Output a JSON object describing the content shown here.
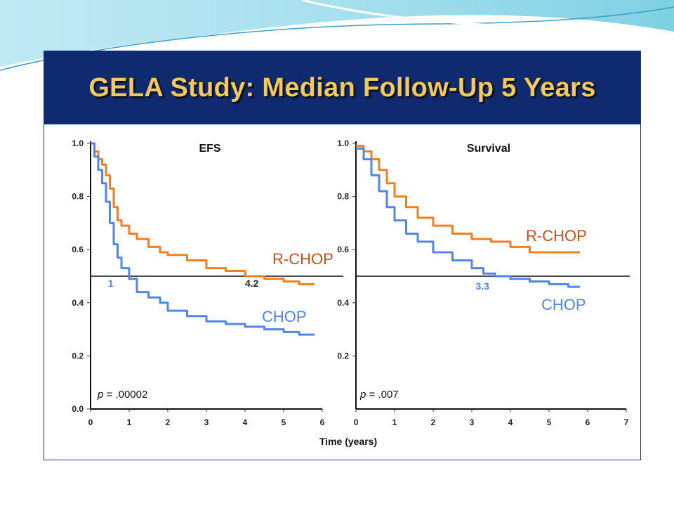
{
  "slide": {
    "title": "GELA Study: Median Follow-Up 5 Years",
    "colors": {
      "title_bar": "#0f2a6e",
      "title_text": "#f3c95a",
      "accent": "#5ec8e0"
    }
  },
  "chart_data": [
    {
      "type": "line",
      "title": "EFS",
      "xlabel": "",
      "ylabel": "",
      "xlim": [
        0,
        6
      ],
      "ylim": [
        0,
        1
      ],
      "x_ticks": [
        "0",
        "1",
        "2",
        "3",
        "4",
        "5",
        "6"
      ],
      "y_ticks": [
        "0.0",
        "0.2",
        "0.4",
        "0.6",
        "0.8",
        "1.0"
      ],
      "reference_line": 0.5,
      "p_value": ".00002",
      "series": [
        {
          "name": "R-CHOP",
          "color": "#f07f22",
          "x": [
            0,
            0.1,
            0.2,
            0.3,
            0.4,
            0.5,
            0.6,
            0.7,
            0.8,
            1.0,
            1.2,
            1.5,
            1.8,
            2.0,
            2.5,
            3.0,
            3.5,
            4.0,
            4.2,
            4.5,
            5.0,
            5.4,
            5.8
          ],
          "y": [
            1.0,
            0.97,
            0.94,
            0.92,
            0.88,
            0.83,
            0.76,
            0.71,
            0.69,
            0.66,
            0.64,
            0.61,
            0.59,
            0.58,
            0.56,
            0.53,
            0.52,
            0.5,
            0.5,
            0.49,
            0.48,
            0.47,
            0.47
          ]
        },
        {
          "name": "CHOP",
          "color": "#4f86ea",
          "x": [
            0,
            0.1,
            0.2,
            0.3,
            0.4,
            0.5,
            0.6,
            0.7,
            0.8,
            1.0,
            1.2,
            1.5,
            1.8,
            2.0,
            2.5,
            3.0,
            3.5,
            4.0,
            4.5,
            5.0,
            5.4,
            5.8
          ],
          "y": [
            1.0,
            0.95,
            0.9,
            0.85,
            0.78,
            0.7,
            0.62,
            0.57,
            0.53,
            0.49,
            0.44,
            0.42,
            0.4,
            0.37,
            0.35,
            0.33,
            0.32,
            0.31,
            0.3,
            0.29,
            0.28,
            0.28
          ]
        }
      ],
      "annotations": [
        {
          "text": "1",
          "x": 0.45,
          "y": 0.46,
          "color": "#4f86ea"
        },
        {
          "text": "4.2",
          "x": 4.0,
          "y": 0.46,
          "color": "#222222"
        }
      ]
    },
    {
      "type": "line",
      "title": "Survival",
      "xlabel": "Time (years)",
      "ylabel": "",
      "xlim": [
        0,
        7
      ],
      "ylim": [
        0,
        1
      ],
      "x_ticks": [
        "0",
        "1",
        "2",
        "3",
        "4",
        "5",
        "6",
        "7"
      ],
      "y_ticks": [
        "0.2",
        "0.4",
        "0.6",
        "0.8",
        "1.0"
      ],
      "reference_line": 0.5,
      "p_value": ".007",
      "series": [
        {
          "name": "R-CHOP",
          "color": "#f07f22",
          "x": [
            0,
            0.2,
            0.4,
            0.6,
            0.8,
            1.0,
            1.3,
            1.6,
            2.0,
            2.5,
            3.0,
            3.5,
            4.0,
            4.5,
            5.0,
            5.5,
            5.8
          ],
          "y": [
            0.99,
            0.97,
            0.94,
            0.9,
            0.85,
            0.8,
            0.76,
            0.72,
            0.69,
            0.66,
            0.64,
            0.63,
            0.61,
            0.59,
            0.59,
            0.59,
            0.59
          ]
        },
        {
          "name": "CHOP",
          "color": "#4f86ea",
          "x": [
            0,
            0.2,
            0.4,
            0.6,
            0.8,
            1.0,
            1.3,
            1.6,
            2.0,
            2.5,
            3.0,
            3.3,
            3.6,
            4.0,
            4.5,
            5.0,
            5.5,
            5.8
          ],
          "y": [
            0.98,
            0.94,
            0.88,
            0.82,
            0.76,
            0.71,
            0.66,
            0.63,
            0.59,
            0.56,
            0.53,
            0.51,
            0.5,
            0.49,
            0.48,
            0.47,
            0.46,
            0.46
          ]
        }
      ],
      "annotations": [
        {
          "text": "3.3",
          "x": 3.1,
          "y": 0.45,
          "color": "#4f86ea"
        }
      ]
    }
  ]
}
